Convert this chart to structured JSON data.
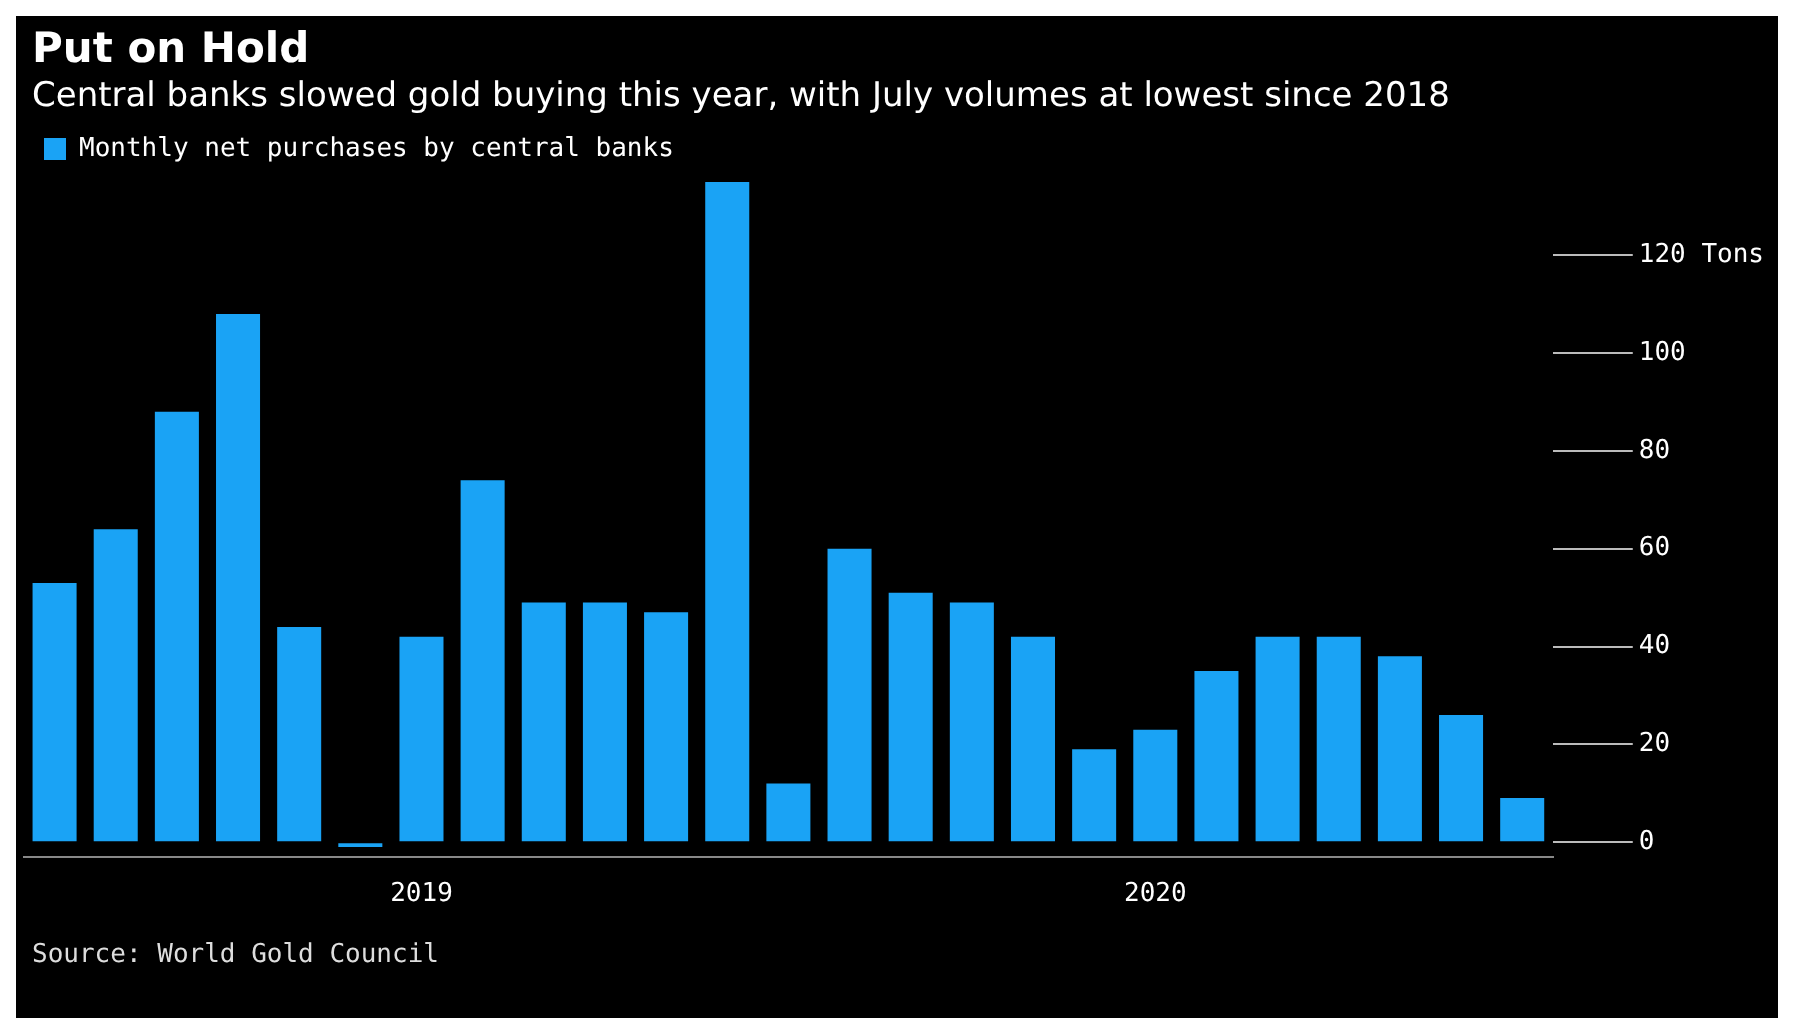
{
  "chart_data": {
    "type": "bar",
    "title": "Put on Hold",
    "subtitle": "Central banks slowed gold buying this year, with July volumes at lowest since 2018",
    "categories": [
      null,
      null,
      null,
      null,
      null,
      null,
      "2019",
      null,
      null,
      null,
      null,
      null,
      null,
      null,
      null,
      null,
      null,
      null,
      "2020",
      null,
      null,
      null,
      null,
      null,
      null
    ],
    "series": [
      {
        "name": "Monthly net purchases by central banks",
        "color": "#1aa3f5",
        "values": [
          53,
          64,
          88,
          108,
          44,
          -1,
          42,
          74,
          49,
          49,
          47,
          135,
          12,
          60,
          51,
          49,
          42,
          19,
          23,
          35,
          42,
          42,
          38,
          26,
          9
        ]
      }
    ],
    "ylim": [
      -3,
      135
    ],
    "yticks": [
      0,
      20,
      40,
      60,
      80,
      100,
      {
        "value": 120,
        "label": "120 Tons"
      }
    ],
    "grid": false,
    "legend": "top left",
    "annotations": [
      "Source: World Gold Council"
    ]
  }
}
